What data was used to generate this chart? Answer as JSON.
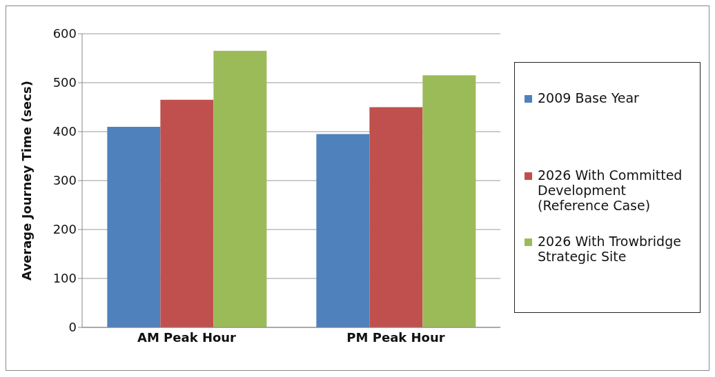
{
  "chart_data": {
    "type": "bar",
    "ylabel": "Average Journey Time (secs)",
    "categories": [
      "AM Peak Hour",
      "PM Peak Hour"
    ],
    "series": [
      {
        "name": "2009 Base Year",
        "color": "#4f81bd",
        "values": [
          410,
          395
        ]
      },
      {
        "name": "2026 With Committed Development (Reference Case)",
        "color": "#c0504d",
        "values": [
          465,
          450
        ]
      },
      {
        "name": "2026 With Trowbridge Strategic Site",
        "color": "#9bbb59",
        "values": [
          565,
          515
        ]
      }
    ],
    "ylim": [
      0,
      600
    ],
    "yticks": [
      0,
      100,
      200,
      300,
      400,
      500,
      600
    ],
    "grid": "y",
    "legend": "right"
  }
}
